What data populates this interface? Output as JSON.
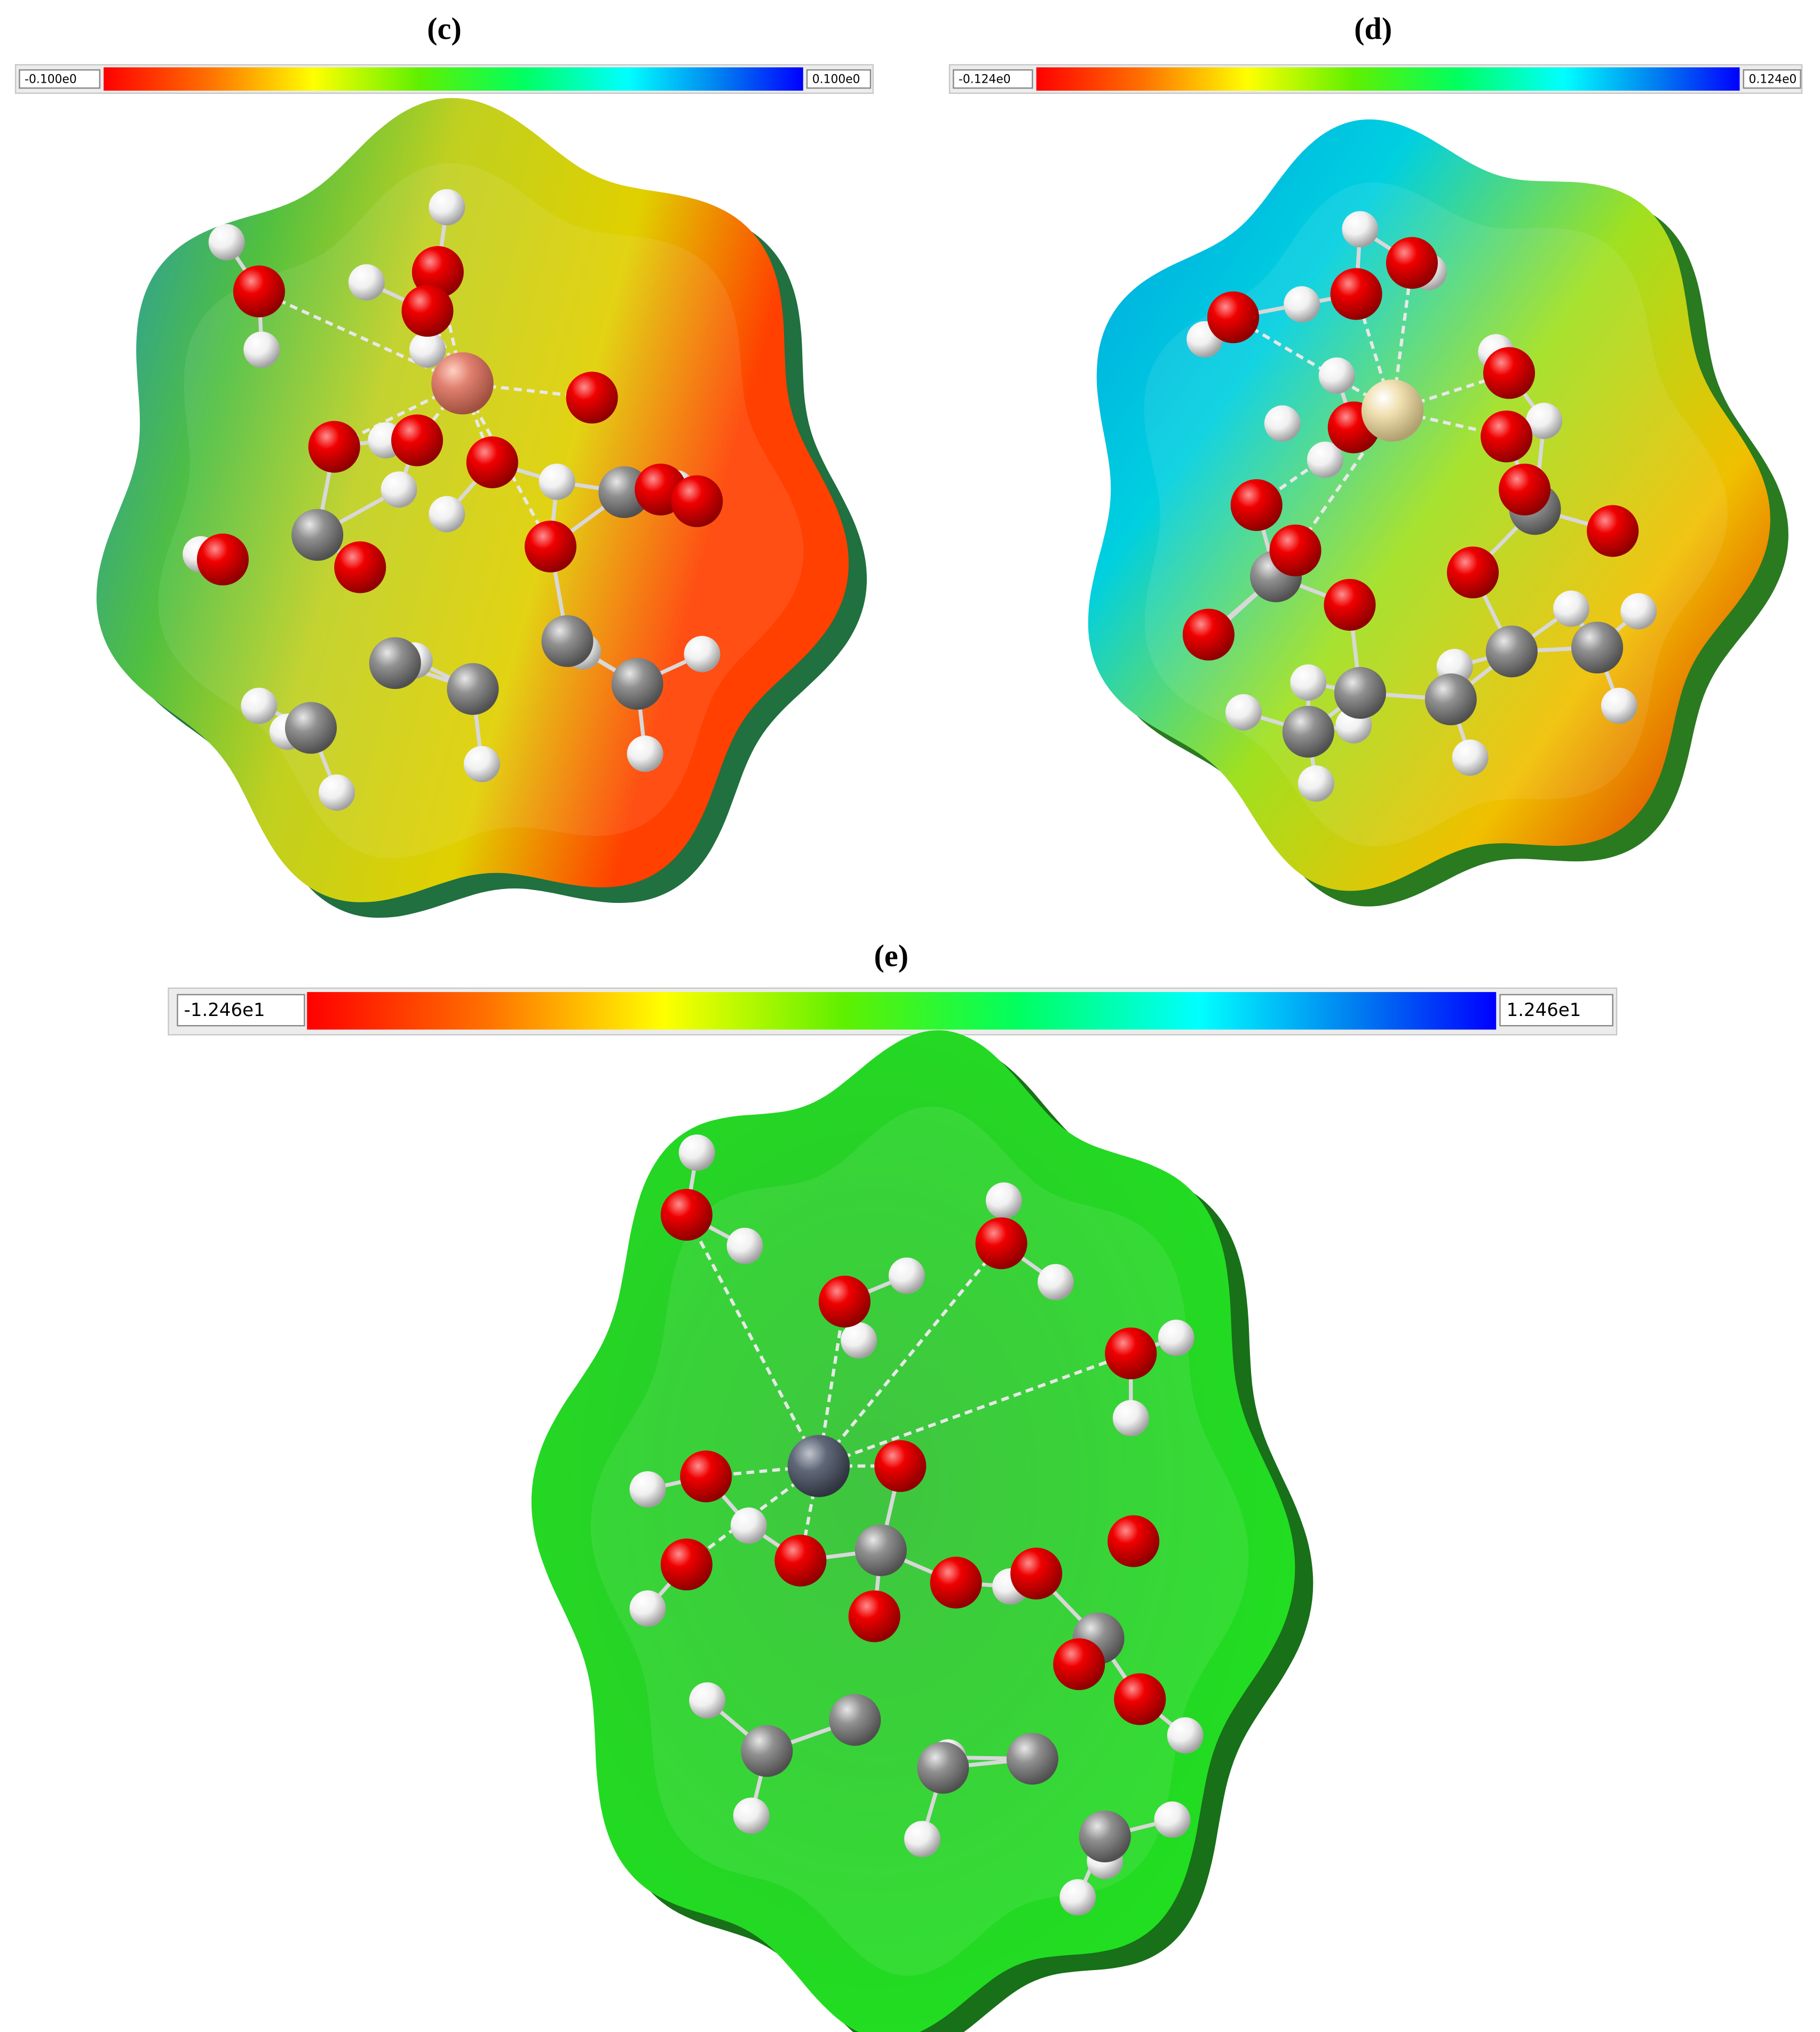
{
  "panels": [
    {
      "label": "(c)",
      "scale_min": "-0.100e0",
      "scale_max": "0.100e0"
    },
    {
      "label": "(d)",
      "scale_min": "-0.124e0",
      "scale_max": "0.124e0"
    },
    {
      "label": "(e)",
      "scale_min": "-1.246e1",
      "scale_max": "1.246e1"
    }
  ]
}
